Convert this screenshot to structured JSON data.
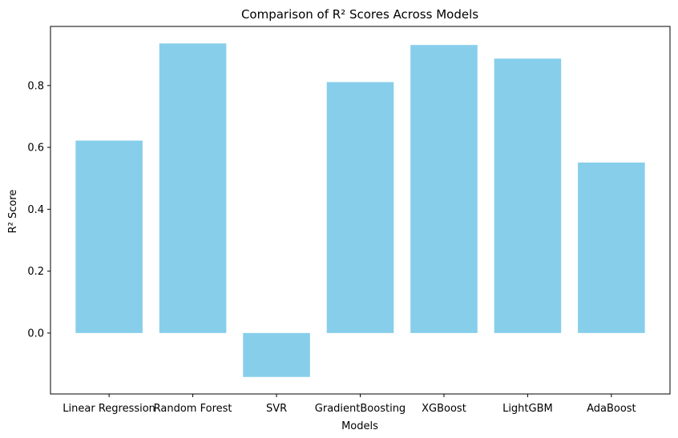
{
  "chart_data": {
    "type": "bar",
    "title": "Comparison of R² Scores Across Models",
    "xlabel": "Models",
    "ylabel": "R² Score",
    "categories": [
      "Linear Regression",
      "Random Forest",
      "SVR",
      "GradientBoosting",
      "XGBoost",
      "LightGBM",
      "AdaBoost"
    ],
    "values": [
      0.622,
      0.936,
      -0.142,
      0.811,
      0.931,
      0.887,
      0.551
    ],
    "ylim": [
      -0.197,
      0.991
    ],
    "yticks": [
      0.0,
      0.2,
      0.4,
      0.6,
      0.8
    ],
    "ytick_labels": [
      "0.0",
      "0.2",
      "0.4",
      "0.6",
      "0.8"
    ],
    "bar_color": "#87ceeb",
    "grid": false,
    "legend": "none"
  }
}
